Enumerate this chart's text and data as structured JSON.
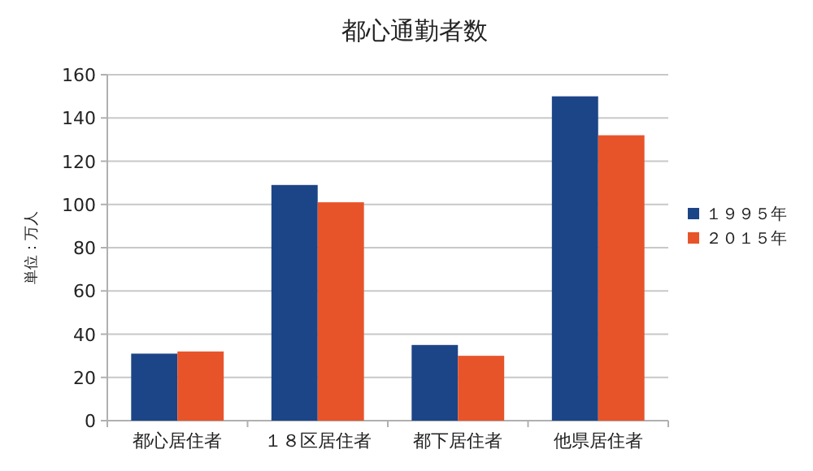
{
  "chart_data": {
    "type": "bar",
    "title": "都心通勤者数",
    "ylabel": "単位：万人",
    "categories": [
      "都心居住者",
      "１８区居住者",
      "都下居住者",
      "他県居住者"
    ],
    "series": [
      {
        "name": "１９９５年",
        "color": "#1c4587",
        "values": [
          31,
          109,
          35,
          150
        ]
      },
      {
        "name": "２０１５年",
        "color": "#e8542a",
        "values": [
          32,
          101,
          30,
          132
        ]
      }
    ],
    "ylim": [
      0,
      160
    ],
    "yticks": [
      0,
      20,
      40,
      60,
      80,
      100,
      120,
      140,
      160
    ],
    "grid": "y",
    "legend": "right"
  }
}
